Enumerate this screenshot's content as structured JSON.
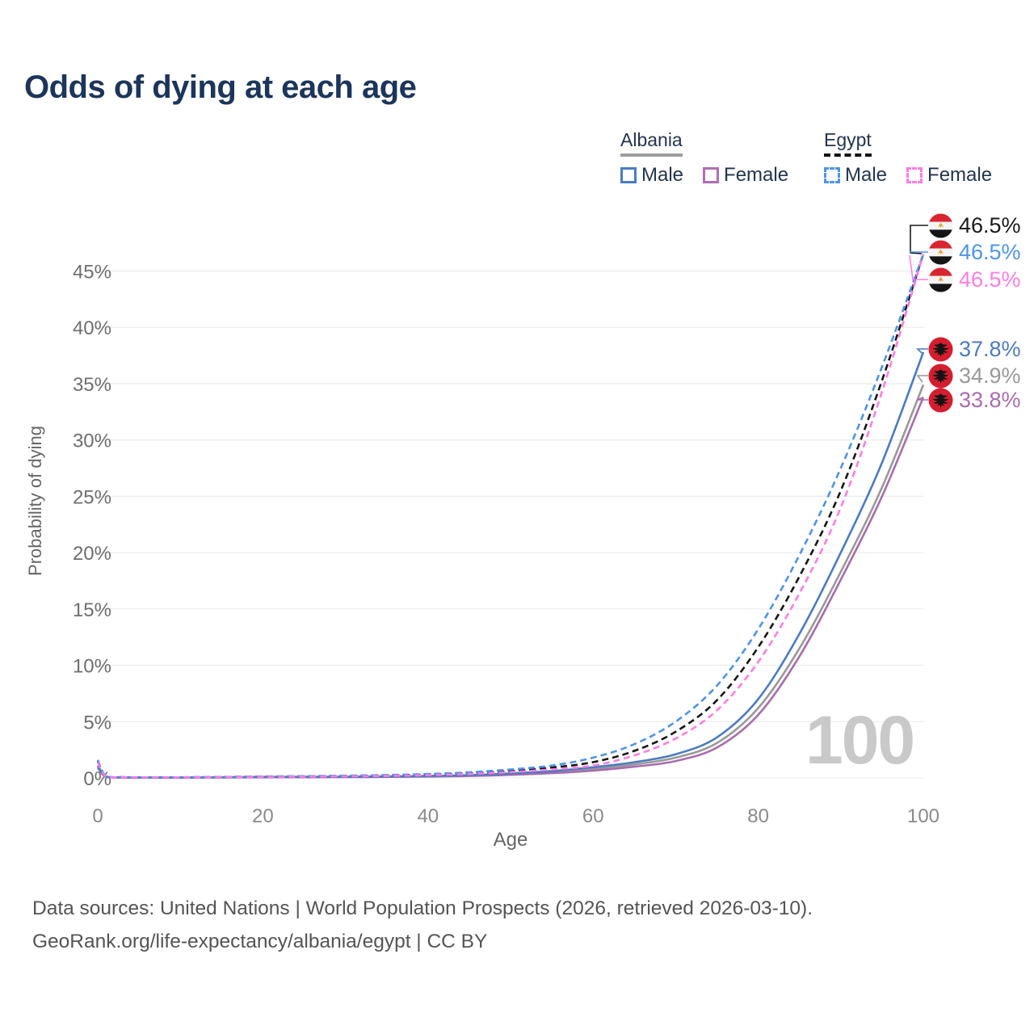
{
  "title": "Odds of dying at each age",
  "legend": {
    "groups": [
      {
        "name": "Albania",
        "style": "solid",
        "underline_color": "#9e9e9e",
        "items": [
          {
            "label": "Male",
            "color": "#4a7cc0",
            "dashed": false
          },
          {
            "label": "Female",
            "color": "#b16db5",
            "dashed": false
          }
        ]
      },
      {
        "name": "Egypt",
        "style": "dashed",
        "underline_color": "#141414",
        "items": [
          {
            "label": "Male",
            "color": "#4d94e8",
            "dashed": true
          },
          {
            "label": "Female",
            "color": "#ff7ce5",
            "dashed": true
          }
        ]
      }
    ]
  },
  "chart_data": {
    "type": "line",
    "title": "Odds of dying at each age",
    "xlabel": "Age",
    "ylabel": "Probability of dying",
    "x_ticks": [
      0,
      20,
      40,
      60,
      80,
      100
    ],
    "y_ticks": [
      "0%",
      "5%",
      "10%",
      "15%",
      "20%",
      "25%",
      "30%",
      "35%",
      "40%",
      "45%"
    ],
    "xlim": [
      0,
      100
    ],
    "ylim": [
      0,
      48
    ],
    "grid": "horizontal",
    "legend_position": "top-right",
    "x": [
      0,
      1,
      3,
      5,
      10,
      15,
      20,
      25,
      30,
      35,
      40,
      45,
      50,
      55,
      60,
      65,
      70,
      75,
      80,
      85,
      90,
      95,
      100
    ],
    "series": [
      {
        "id": "albania-both",
        "name": "Albania — Both sexes",
        "country": "Albania",
        "sex": "Both",
        "color": "#999999",
        "dashed": false,
        "values": [
          1.0,
          0.11,
          0.05,
          0.04,
          0.04,
          0.05,
          0.07,
          0.08,
          0.09,
          0.11,
          0.14,
          0.21,
          0.33,
          0.5,
          0.8,
          1.2,
          1.8,
          3.1,
          6.2,
          11.5,
          18.3,
          25.8,
          34.9
        ]
      },
      {
        "id": "albania-female",
        "name": "Albania — Female",
        "country": "Albania",
        "sex": "Female",
        "color": "#a86cae",
        "dashed": false,
        "values": [
          0.9,
          0.1,
          0.04,
          0.03,
          0.03,
          0.04,
          0.05,
          0.06,
          0.07,
          0.09,
          0.12,
          0.17,
          0.27,
          0.42,
          0.65,
          1.0,
          1.5,
          2.7,
          5.6,
          10.8,
          17.6,
          25.0,
          33.8
        ]
      },
      {
        "id": "albania-male",
        "name": "Albania — Male",
        "country": "Albania",
        "sex": "Male",
        "color": "#4a7cc0",
        "dashed": false,
        "values": [
          1.1,
          0.12,
          0.05,
          0.04,
          0.04,
          0.06,
          0.09,
          0.1,
          0.11,
          0.13,
          0.17,
          0.25,
          0.4,
          0.6,
          0.95,
          1.4,
          2.1,
          3.6,
          7.0,
          12.8,
          20.0,
          28.0,
          37.8
        ]
      },
      {
        "id": "egypt-both",
        "name": "Egypt — Both sexes",
        "country": "Egypt",
        "sex": "Both",
        "color": "#161616",
        "dashed": true,
        "values": [
          1.5,
          0.14,
          0.06,
          0.05,
          0.05,
          0.08,
          0.11,
          0.13,
          0.17,
          0.22,
          0.3,
          0.42,
          0.62,
          0.92,
          1.4,
          2.4,
          4.1,
          6.9,
          11.6,
          17.9,
          25.5,
          35.3,
          46.5
        ]
      },
      {
        "id": "egypt-male",
        "name": "Egypt — Male",
        "country": "Egypt",
        "sex": "Male",
        "color": "#4d94e8",
        "dashed": true,
        "values": [
          1.6,
          0.15,
          0.07,
          0.06,
          0.06,
          0.09,
          0.13,
          0.16,
          0.2,
          0.26,
          0.35,
          0.5,
          0.75,
          1.1,
          1.8,
          3.0,
          5.0,
          8.2,
          13.2,
          19.8,
          27.5,
          36.5,
          46.5
        ]
      },
      {
        "id": "egypt-female",
        "name": "Egypt — Female",
        "country": "Egypt",
        "sex": "Female",
        "color": "#ff7ce5",
        "dashed": true,
        "values": [
          1.4,
          0.13,
          0.06,
          0.05,
          0.05,
          0.07,
          0.09,
          0.11,
          0.14,
          0.18,
          0.25,
          0.35,
          0.52,
          0.76,
          1.1,
          2.0,
          3.5,
          6.0,
          10.3,
          16.4,
          24.0,
          34.3,
          46.5
        ]
      }
    ],
    "end_labels": [
      {
        "text": "46.5%",
        "color": "#1a1a1a",
        "flag": "egypt"
      },
      {
        "text": "46.5%",
        "color": "#4d94e8",
        "flag": "egypt"
      },
      {
        "text": "46.5%",
        "color": "#ff7ce5",
        "flag": "egypt"
      },
      {
        "text": "37.8%",
        "color": "#4a7cc0",
        "flag": "albania"
      },
      {
        "text": "34.9%",
        "color": "#999999",
        "flag": "albania"
      },
      {
        "text": "33.8%",
        "color": "#a86cae",
        "flag": "albania"
      }
    ]
  },
  "watermark": "100",
  "footer": {
    "line1": "Data sources: United Nations | World Population Prospects (2026, retrieved 2026-03-10).",
    "line2": "GeoRank.org/life-expectancy/albania/egypt | CC BY"
  }
}
